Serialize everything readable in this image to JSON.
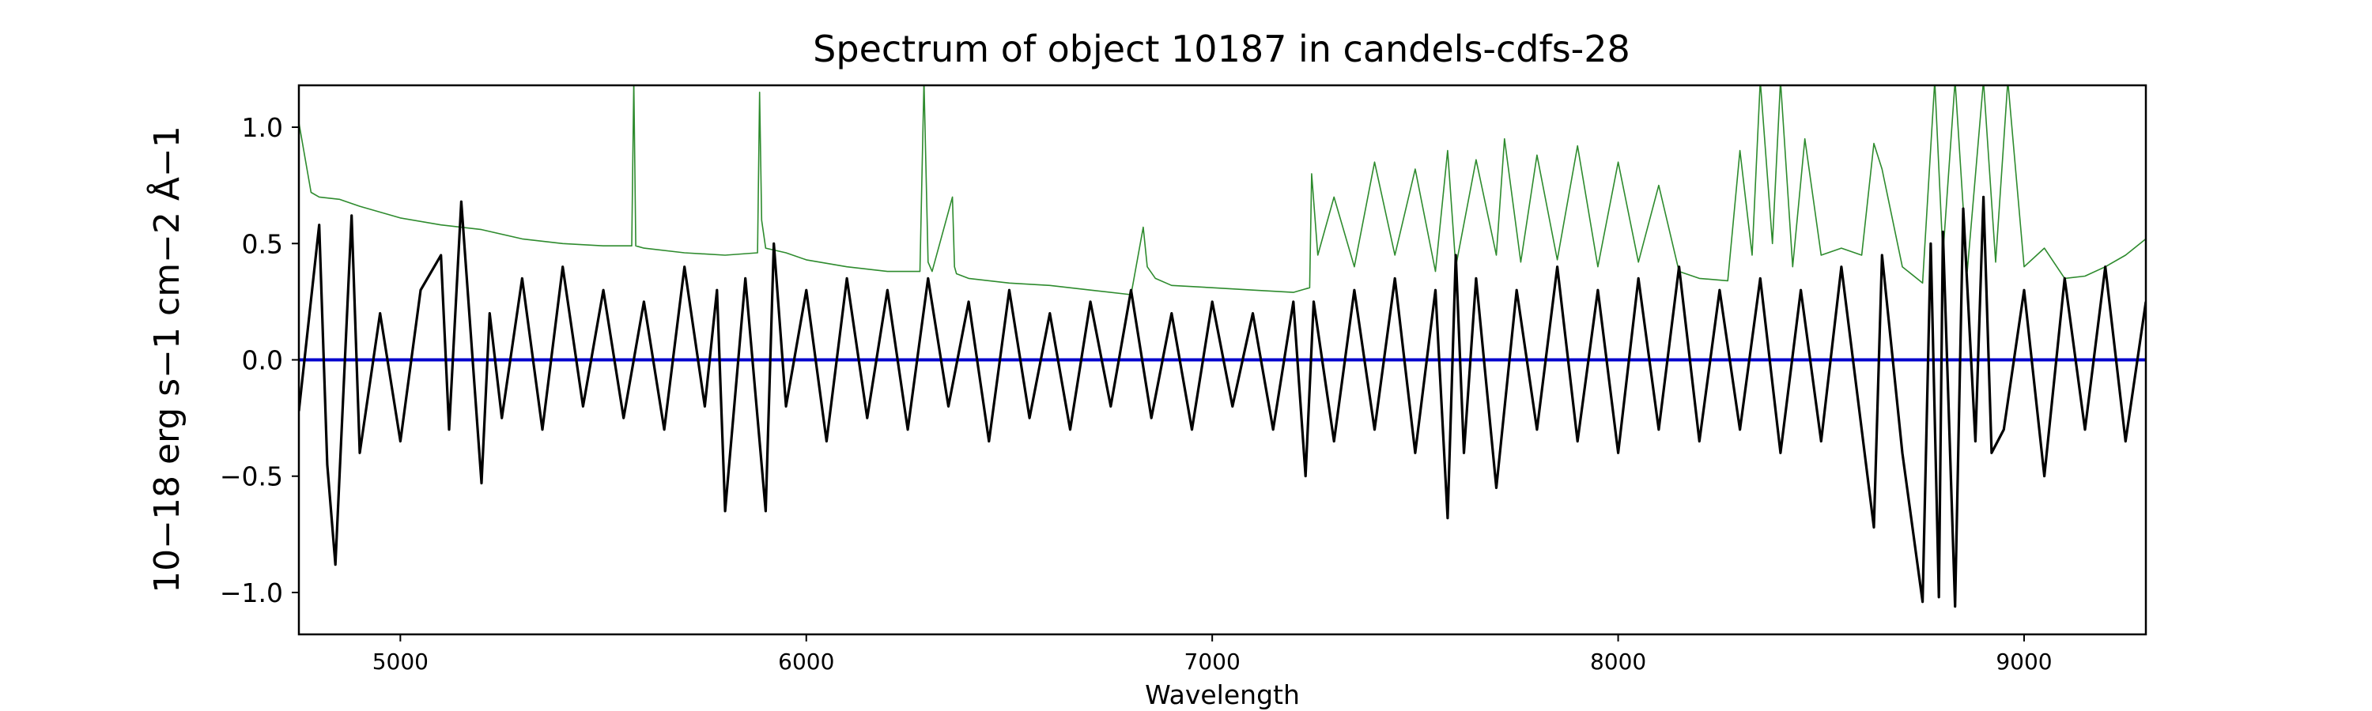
{
  "chart_data": {
    "type": "line",
    "title": "Spectrum of object 10187 in candels-cdfs-28",
    "xlabel": "Wavelength",
    "ylabel": "10−18 erg s−1 cm−2 Å−1",
    "xlim": [
      4750,
      9300
    ],
    "ylim": [
      -1.18,
      1.18
    ],
    "xticks": [
      5000,
      6000,
      7000,
      8000,
      9000
    ],
    "xtick_labels": [
      "5000",
      "6000",
      "7000",
      "8000",
      "9000"
    ],
    "yticks": [
      -1.0,
      -0.5,
      0.0,
      0.5,
      1.0
    ],
    "ytick_labels": [
      "−1.0",
      "−0.5",
      "0.0",
      "0.5",
      "1.0"
    ],
    "grid": false,
    "legend": "none",
    "series": [
      {
        "color": "#2e8b2e",
        "role": "error",
        "x": [
          4750,
          4780,
          4800,
          4850,
          4900,
          5000,
          5100,
          5200,
          5300,
          5400,
          5500,
          5570,
          5575,
          5580,
          5600,
          5700,
          5800,
          5880,
          5885,
          5890,
          5900,
          5950,
          6000,
          6100,
          6200,
          6280,
          6290,
          6300,
          6310,
          6360,
          6365,
          6370,
          6400,
          6500,
          6600,
          6700,
          6800,
          6830,
          6840,
          6860,
          6900,
          7000,
          7100,
          7200,
          7240,
          7245,
          7260,
          7300,
          7350,
          7400,
          7450,
          7500,
          7550,
          7580,
          7600,
          7650,
          7700,
          7720,
          7760,
          7800,
          7850,
          7900,
          7950,
          8000,
          8050,
          8100,
          8150,
          8200,
          8270,
          8300,
          8330,
          8350,
          8380,
          8400,
          8430,
          8460,
          8500,
          8550,
          8600,
          8630,
          8650,
          8700,
          8750,
          8780,
          8800,
          8830,
          8860,
          8900,
          8930,
          8960,
          9000,
          9050,
          9100,
          9150,
          9200,
          9250,
          9300
        ],
        "y": [
          1.02,
          0.72,
          0.7,
          0.69,
          0.66,
          0.61,
          0.58,
          0.56,
          0.52,
          0.5,
          0.49,
          0.49,
          1.2,
          0.49,
          0.48,
          0.46,
          0.45,
          0.46,
          1.15,
          0.6,
          0.48,
          0.46,
          0.43,
          0.4,
          0.38,
          0.38,
          1.2,
          0.42,
          0.38,
          0.7,
          0.4,
          0.37,
          0.35,
          0.33,
          0.32,
          0.3,
          0.28,
          0.57,
          0.4,
          0.35,
          0.32,
          0.31,
          0.3,
          0.29,
          0.31,
          0.8,
          0.45,
          0.7,
          0.4,
          0.85,
          0.45,
          0.82,
          0.38,
          0.9,
          0.4,
          0.86,
          0.45,
          0.95,
          0.42,
          0.88,
          0.43,
          0.92,
          0.4,
          0.85,
          0.42,
          0.75,
          0.38,
          0.35,
          0.34,
          0.9,
          0.45,
          1.2,
          0.5,
          1.2,
          0.4,
          0.95,
          0.45,
          0.48,
          0.45,
          0.93,
          0.82,
          0.4,
          0.33,
          1.2,
          0.45,
          1.2,
          0.38,
          1.2,
          0.42,
          1.2,
          0.4,
          0.48,
          0.35,
          0.36,
          0.4,
          0.45,
          0.52
        ]
      },
      {
        "color": "#0000cc",
        "role": "model",
        "x": [
          4750,
          9300
        ],
        "y": [
          0.0,
          0.0
        ]
      },
      {
        "color": "#000000",
        "role": "flux",
        "x": [
          4750,
          4800,
          4820,
          4840,
          4880,
          4900,
          4950,
          5000,
          5050,
          5100,
          5120,
          5150,
          5200,
          5220,
          5250,
          5300,
          5350,
          5400,
          5450,
          5500,
          5550,
          5600,
          5650,
          5700,
          5750,
          5780,
          5800,
          5850,
          5900,
          5920,
          5950,
          6000,
          6050,
          6100,
          6150,
          6200,
          6250,
          6300,
          6350,
          6400,
          6450,
          6500,
          6550,
          6600,
          6650,
          6700,
          6750,
          6800,
          6850,
          6900,
          6950,
          7000,
          7050,
          7100,
          7150,
          7200,
          7230,
          7250,
          7300,
          7350,
          7400,
          7450,
          7500,
          7550,
          7580,
          7600,
          7620,
          7650,
          7700,
          7750,
          7800,
          7850,
          7900,
          7950,
          8000,
          8050,
          8100,
          8150,
          8200,
          8250,
          8300,
          8350,
          8400,
          8450,
          8500,
          8550,
          8600,
          8630,
          8650,
          8700,
          8750,
          8770,
          8790,
          8800,
          8830,
          8850,
          8880,
          8900,
          8920,
          8950,
          9000,
          9050,
          9100,
          9150,
          9200,
          9250,
          9300
        ],
        "y": [
          -0.22,
          0.58,
          -0.45,
          -0.88,
          0.62,
          -0.4,
          0.2,
          -0.35,
          0.3,
          0.45,
          -0.3,
          0.68,
          -0.53,
          0.2,
          -0.25,
          0.35,
          -0.3,
          0.4,
          -0.2,
          0.3,
          -0.25,
          0.25,
          -0.3,
          0.4,
          -0.2,
          0.3,
          -0.65,
          0.35,
          -0.65,
          0.5,
          -0.2,
          0.3,
          -0.35,
          0.35,
          -0.25,
          0.3,
          -0.3,
          0.35,
          -0.2,
          0.25,
          -0.35,
          0.3,
          -0.25,
          0.2,
          -0.3,
          0.25,
          -0.2,
          0.3,
          -0.25,
          0.2,
          -0.3,
          0.25,
          -0.2,
          0.2,
          -0.3,
          0.25,
          -0.5,
          0.25,
          -0.35,
          0.3,
          -0.3,
          0.35,
          -0.4,
          0.3,
          -0.68,
          0.45,
          -0.4,
          0.35,
          -0.55,
          0.3,
          -0.3,
          0.4,
          -0.35,
          0.3,
          -0.4,
          0.35,
          -0.3,
          0.4,
          -0.35,
          0.3,
          -0.3,
          0.35,
          -0.4,
          0.3,
          -0.35,
          0.4,
          -0.3,
          -0.72,
          0.45,
          -0.4,
          -1.04,
          0.5,
          -1.02,
          0.55,
          -1.06,
          0.65,
          -0.35,
          0.7,
          -0.4,
          -0.3,
          0.3,
          -0.5,
          0.35,
          -0.3,
          0.4,
          -0.35,
          0.25
        ]
      }
    ]
  }
}
